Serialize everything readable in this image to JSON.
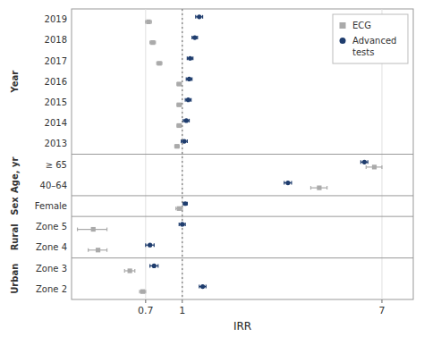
{
  "chart_data": {
    "type": "forest",
    "xlabel": "IRR",
    "categories": [
      "2019",
      "2018",
      "2017",
      "2016",
      "2015",
      "2014",
      "2013",
      "≥ 65",
      "40–64",
      "Female",
      "Zone 5",
      "Zone 4",
      "Zone 3",
      "Zone 2"
    ],
    "series": [
      {
        "name": "ECG",
        "color": "#aaaaaa",
        "marker": "square",
        "values": [
          0.72,
          0.75,
          0.8,
          0.97,
          0.97,
          0.97,
          0.95,
          6.5,
          3.8,
          0.97,
          0.42,
          0.44,
          0.6,
          0.68
        ],
        "ci_low": [
          0.7,
          0.73,
          0.78,
          0.95,
          0.95,
          0.95,
          0.93,
          6.0,
          3.5,
          0.94,
          0.36,
          0.4,
          0.57,
          0.66
        ],
        "ci_high": [
          0.74,
          0.77,
          0.82,
          0.99,
          0.99,
          0.99,
          0.97,
          7.0,
          4.1,
          1.0,
          0.48,
          0.48,
          0.63,
          0.7
        ]
      },
      {
        "name": "Advanced\ntests",
        "color": "#1f3d6e",
        "marker": "circle",
        "values": [
          1.18,
          1.13,
          1.08,
          1.07,
          1.06,
          1.04,
          1.02,
          5.9,
          2.8,
          1.03,
          1.0,
          0.73,
          0.76,
          1.22
        ],
        "ci_low": [
          1.14,
          1.1,
          1.05,
          1.04,
          1.03,
          1.01,
          0.99,
          5.7,
          2.7,
          1.01,
          0.97,
          0.7,
          0.73,
          1.18
        ],
        "ci_high": [
          1.22,
          1.16,
          1.11,
          1.1,
          1.09,
          1.07,
          1.05,
          6.1,
          2.9,
          1.05,
          1.03,
          0.76,
          0.79,
          1.26
        ]
      }
    ],
    "groups": [
      {
        "label": "Year",
        "row_indices": [
          0,
          1,
          2,
          3,
          4,
          5,
          6
        ]
      },
      {
        "label": "Age, yr",
        "row_indices": [
          7,
          8
        ]
      },
      {
        "label": "Sex",
        "row_indices": [
          9
        ]
      },
      {
        "label": "Rural",
        "row_indices": [
          10,
          11
        ]
      },
      {
        "label": "Urban",
        "row_indices": [
          12,
          13
        ]
      }
    ],
    "reference_line": 1,
    "xlim": [
      0.34,
      9.5
    ],
    "xticks": [
      0.7,
      1,
      7
    ],
    "log": "x",
    "grid": true,
    "legend": "upper right"
  }
}
